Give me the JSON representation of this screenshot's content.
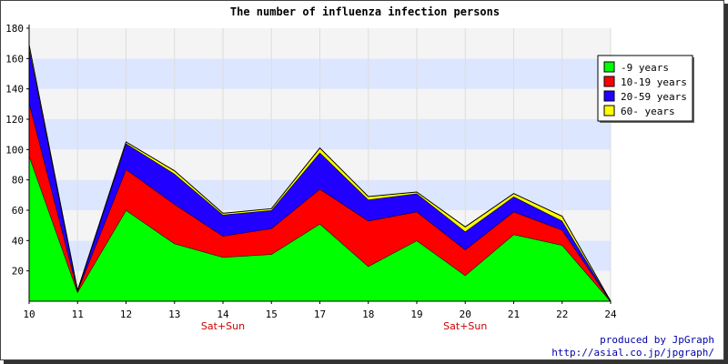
{
  "chart_data": {
    "type": "area",
    "stacked": true,
    "title": "The number of influenza infection persons",
    "x": [
      "10",
      "11",
      "12",
      "13",
      "14",
      "15",
      "17",
      "18",
      "19",
      "20",
      "21",
      "22",
      "24"
    ],
    "x_sublabels": [
      "",
      "",
      "",
      "",
      "Sat+Sun",
      "",
      "",
      "",
      "",
      "Sat+Sun",
      "",
      "",
      ""
    ],
    "ylim": [
      0,
      180
    ],
    "yticks": [
      20,
      40,
      60,
      80,
      100,
      120,
      140,
      160,
      180
    ],
    "grid": true,
    "legend_position": "top-right",
    "series": [
      {
        "name": "-9 years",
        "color": "#00ff00",
        "values": [
          96,
          6,
          60,
          38,
          29,
          31,
          51,
          23,
          40,
          17,
          44,
          37,
          0
        ]
      },
      {
        "name": "10-19 years",
        "color": "#ff0000",
        "values": [
          35,
          1,
          27,
          26,
          14,
          17,
          23,
          30,
          19,
          17,
          15,
          10,
          0
        ]
      },
      {
        "name": "20-59 years",
        "color": "#2200ff",
        "values": [
          36,
          0,
          17,
          20,
          14,
          12,
          24,
          14,
          12,
          12,
          10,
          6,
          0
        ]
      },
      {
        "name": "60- years",
        "color": "#ffff00",
        "values": [
          2,
          0,
          1,
          2,
          1,
          1,
          3,
          2,
          1,
          3,
          2,
          3,
          0
        ]
      }
    ]
  },
  "footer": {
    "line1": "produced by JpGraph",
    "line2": "http://asial.co.jp/jpgraph/"
  }
}
